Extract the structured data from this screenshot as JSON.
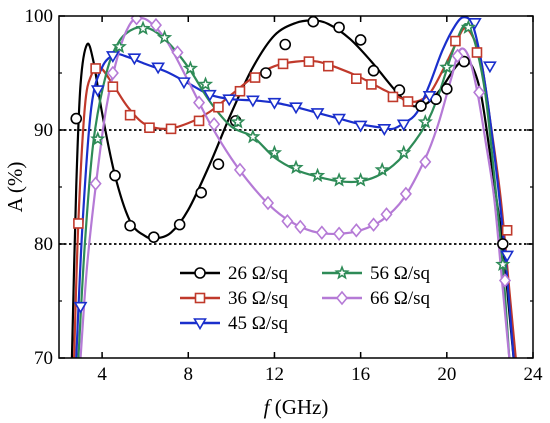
{
  "chart_data": {
    "type": "line",
    "xlabel_italic": "f",
    "xlabel_rest": " (GHz)",
    "ylabel": "A (%)",
    "xlim": [
      2,
      24
    ],
    "ylim": [
      70,
      100
    ],
    "xticks": [
      4,
      8,
      12,
      16,
      20,
      24
    ],
    "yticks": [
      70,
      80,
      90,
      100
    ],
    "reference_lines": [
      80,
      90
    ],
    "legend_placement": "lower-center",
    "series": [
      {
        "name": "26 Ω/sq",
        "color": "#000000",
        "marker": "circle",
        "curve": [
          [
            2.6,
            70
          ],
          [
            2.8,
            85
          ],
          [
            3.0,
            94
          ],
          [
            3.3,
            97.5
          ],
          [
            3.6,
            96
          ],
          [
            4.0,
            91.5
          ],
          [
            4.6,
            86
          ],
          [
            5.3,
            82
          ],
          [
            6.0,
            80.7
          ],
          [
            6.5,
            80.5
          ],
          [
            7.2,
            81
          ],
          [
            8.0,
            83
          ],
          [
            9.0,
            87
          ],
          [
            10.0,
            91.5
          ],
          [
            11.0,
            95.5
          ],
          [
            12.0,
            98.3
          ],
          [
            13.0,
            99.4
          ],
          [
            13.8,
            99.6
          ],
          [
            14.5,
            99.3
          ],
          [
            15.5,
            98
          ],
          [
            16.5,
            96
          ],
          [
            17.5,
            93.7
          ],
          [
            18.2,
            92.3
          ],
          [
            18.7,
            92.1
          ],
          [
            19.2,
            92.5
          ],
          [
            19.8,
            93.8
          ],
          [
            20.4,
            95.5
          ],
          [
            20.8,
            96.1
          ],
          [
            21.2,
            95.5
          ],
          [
            21.6,
            93
          ],
          [
            22.0,
            88
          ],
          [
            22.3,
            84
          ],
          [
            22.6,
            80
          ],
          [
            22.9,
            74
          ],
          [
            23.1,
            70
          ]
        ],
        "markers": [
          [
            2.8,
            91
          ],
          [
            4.6,
            86
          ],
          [
            5.3,
            81.6
          ],
          [
            6.4,
            80.6
          ],
          [
            7.6,
            81.7
          ],
          [
            8.6,
            84.5
          ],
          [
            9.4,
            87
          ],
          [
            10.2,
            90.8
          ],
          [
            11.6,
            95
          ],
          [
            12.5,
            97.5
          ],
          [
            13.8,
            99.5
          ],
          [
            15.0,
            99
          ],
          [
            16.0,
            97.9
          ],
          [
            16.6,
            95.2
          ],
          [
            17.8,
            93.5
          ],
          [
            18.8,
            92.1
          ],
          [
            19.5,
            92.7
          ],
          [
            20.0,
            93.6
          ],
          [
            20.8,
            96
          ],
          [
            22.6,
            80
          ]
        ]
      },
      {
        "name": "36 Ω/sq",
        "color": "#c0392b",
        "marker": "square",
        "curve": [
          [
            2.7,
            70
          ],
          [
            2.9,
            82
          ],
          [
            3.2,
            92
          ],
          [
            3.5,
            94.8
          ],
          [
            3.9,
            95.5
          ],
          [
            4.5,
            94
          ],
          [
            5.2,
            92
          ],
          [
            6.0,
            90.5
          ],
          [
            7.0,
            90.1
          ],
          [
            8.0,
            90.6
          ],
          [
            9.0,
            91.6
          ],
          [
            10.0,
            93.1
          ],
          [
            11.0,
            94.6
          ],
          [
            12.0,
            95.6
          ],
          [
            13.0,
            96
          ],
          [
            14.0,
            96
          ],
          [
            15.0,
            95.4
          ],
          [
            16.0,
            94.6
          ],
          [
            17.0,
            93.6
          ],
          [
            18.0,
            92.7
          ],
          [
            18.6,
            92.5
          ],
          [
            19.2,
            93.2
          ],
          [
            19.8,
            95.2
          ],
          [
            20.4,
            97.5
          ],
          [
            20.8,
            98.9
          ],
          [
            21.2,
            98.2
          ],
          [
            21.6,
            96
          ],
          [
            22.0,
            91
          ],
          [
            22.5,
            84
          ],
          [
            22.9,
            76
          ],
          [
            23.2,
            70
          ]
        ],
        "markers": [
          [
            2.9,
            81.8
          ],
          [
            3.7,
            95.4
          ],
          [
            4.5,
            93.8
          ],
          [
            5.3,
            91.3
          ],
          [
            6.2,
            90.2
          ],
          [
            7.2,
            90.1
          ],
          [
            8.5,
            90.8
          ],
          [
            9.4,
            92
          ],
          [
            10.4,
            93.4
          ],
          [
            11.1,
            94.6
          ],
          [
            12.4,
            95.8
          ],
          [
            13.6,
            96
          ],
          [
            14.5,
            95.6
          ],
          [
            15.8,
            94.5
          ],
          [
            16.5,
            94
          ],
          [
            17.5,
            92.9
          ],
          [
            18.2,
            92.5
          ],
          [
            20.4,
            97.8
          ],
          [
            21.4,
            96.8
          ],
          [
            22.8,
            81.2
          ]
        ]
      },
      {
        "name": "45 Ω/sq",
        "color": "#1a2fcc",
        "marker": "triangle-down",
        "curve": [
          [
            2.8,
            70
          ],
          [
            3.1,
            82
          ],
          [
            3.5,
            92
          ],
          [
            4.0,
            95.5
          ],
          [
            4.6,
            96.6
          ],
          [
            5.2,
            96.4
          ],
          [
            6.0,
            95.8
          ],
          [
            7.0,
            95.1
          ],
          [
            8.0,
            94.1
          ],
          [
            9.0,
            93.1
          ],
          [
            10.0,
            92.7
          ],
          [
            11.0,
            92.6
          ],
          [
            12.0,
            92.4
          ],
          [
            13.0,
            92
          ],
          [
            14.0,
            91.5
          ],
          [
            15.0,
            91
          ],
          [
            16.0,
            90.5
          ],
          [
            17.0,
            90.2
          ],
          [
            17.5,
            90.1
          ],
          [
            18.0,
            90.6
          ],
          [
            18.6,
            91.5
          ],
          [
            19.2,
            94
          ],
          [
            19.8,
            97
          ],
          [
            20.4,
            99.2
          ],
          [
            20.8,
            99.9
          ],
          [
            21.2,
            99.2
          ],
          [
            21.6,
            96
          ],
          [
            22.0,
            91
          ],
          [
            22.5,
            83
          ],
          [
            22.8,
            77
          ],
          [
            23.1,
            70
          ]
        ],
        "markers": [
          [
            3.0,
            74.5
          ],
          [
            3.8,
            93.5
          ],
          [
            4.5,
            96.5
          ],
          [
            5.5,
            96.3
          ],
          [
            6.6,
            95.5
          ],
          [
            7.8,
            94.2
          ],
          [
            9.0,
            93.1
          ],
          [
            9.9,
            92.7
          ],
          [
            11.0,
            92.6
          ],
          [
            12.0,
            92.4
          ],
          [
            13.0,
            92
          ],
          [
            14.0,
            91.5
          ],
          [
            15.0,
            91
          ],
          [
            16.0,
            90.4
          ],
          [
            17.1,
            90.1
          ],
          [
            18.0,
            90.5
          ],
          [
            19.2,
            93
          ],
          [
            21.3,
            99.4
          ],
          [
            22.0,
            95.6
          ],
          [
            22.8,
            79
          ]
        ]
      },
      {
        "name": "56 Ω/sq",
        "color": "#2e8b57",
        "marker": "star",
        "curve": [
          [
            2.9,
            70
          ],
          [
            3.2,
            80
          ],
          [
            3.6,
            89
          ],
          [
            4.2,
            95
          ],
          [
            4.8,
            97.8
          ],
          [
            5.5,
            98.9
          ],
          [
            6.2,
            98.9
          ],
          [
            7.0,
            97.8
          ],
          [
            8.0,
            95.5
          ],
          [
            9.0,
            92.5
          ],
          [
            10.0,
            90.3
          ],
          [
            11.0,
            89.4
          ],
          [
            12.0,
            87.6
          ],
          [
            13.0,
            86.5
          ],
          [
            14.0,
            85.9
          ],
          [
            15.0,
            85.5
          ],
          [
            16.0,
            85.5
          ],
          [
            17.0,
            86.2
          ],
          [
            18.0,
            87.8
          ],
          [
            19.0,
            90.4
          ],
          [
            19.6,
            93
          ],
          [
            20.2,
            96.5
          ],
          [
            20.7,
            98.9
          ],
          [
            21.0,
            99.1
          ],
          [
            21.4,
            97
          ],
          [
            21.8,
            93
          ],
          [
            22.2,
            86
          ],
          [
            22.6,
            78
          ],
          [
            22.9,
            70
          ]
        ],
        "markers": [
          [
            3.8,
            89.2
          ],
          [
            4.8,
            97.3
          ],
          [
            5.9,
            98.9
          ],
          [
            6.9,
            98.1
          ],
          [
            8.1,
            95.4
          ],
          [
            8.8,
            94
          ],
          [
            10.3,
            90.7
          ],
          [
            11.0,
            89.4
          ],
          [
            12.0,
            88
          ],
          [
            13.0,
            86.7
          ],
          [
            14.0,
            86
          ],
          [
            15.0,
            85.6
          ],
          [
            16.0,
            85.6
          ],
          [
            17.0,
            86.5
          ],
          [
            18.0,
            88
          ],
          [
            19.0,
            90.7
          ],
          [
            20.0,
            95.5
          ],
          [
            21.0,
            99
          ],
          [
            22.6,
            78.2
          ]
        ]
      },
      {
        "name": "66 Ω/sq",
        "color": "#b57ad6",
        "marker": "diamond",
        "curve": [
          [
            3.0,
            70
          ],
          [
            3.3,
            78
          ],
          [
            3.7,
            85
          ],
          [
            4.2,
            92
          ],
          [
            4.8,
            97
          ],
          [
            5.3,
            99.3
          ],
          [
            5.7,
            99.8
          ],
          [
            6.2,
            99.5
          ],
          [
            7.0,
            97.8
          ],
          [
            8.0,
            94.3
          ],
          [
            9.0,
            90.6
          ],
          [
            10.0,
            87.5
          ],
          [
            11.0,
            85
          ],
          [
            12.0,
            83
          ],
          [
            13.0,
            81.7
          ],
          [
            14.0,
            81
          ],
          [
            15.0,
            80.9
          ],
          [
            16.0,
            81.2
          ],
          [
            17.0,
            82.1
          ],
          [
            18.0,
            84
          ],
          [
            19.0,
            87.5
          ],
          [
            19.6,
            90.5
          ],
          [
            20.2,
            94.5
          ],
          [
            20.6,
            97
          ],
          [
            21.0,
            96.5
          ],
          [
            21.4,
            93.5
          ],
          [
            21.8,
            89
          ],
          [
            22.2,
            84
          ],
          [
            22.6,
            76
          ],
          [
            22.9,
            70
          ]
        ],
        "markers": [
          [
            3.7,
            85.3
          ],
          [
            4.5,
            95
          ],
          [
            5.6,
            99.8
          ],
          [
            6.5,
            99.2
          ],
          [
            7.5,
            96.8
          ],
          [
            8.5,
            92.4
          ],
          [
            9.2,
            90.5
          ],
          [
            10.4,
            86.5
          ],
          [
            11.7,
            83.6
          ],
          [
            12.6,
            82
          ],
          [
            13.2,
            81.5
          ],
          [
            14.2,
            81
          ],
          [
            15.0,
            80.9
          ],
          [
            15.8,
            81.2
          ],
          [
            16.6,
            81.7
          ],
          [
            17.2,
            82.6
          ],
          [
            18.1,
            84.4
          ],
          [
            19.0,
            87.2
          ],
          [
            20.5,
            96.5
          ],
          [
            21.5,
            93.3
          ],
          [
            22.7,
            76.8
          ]
        ]
      }
    ]
  }
}
